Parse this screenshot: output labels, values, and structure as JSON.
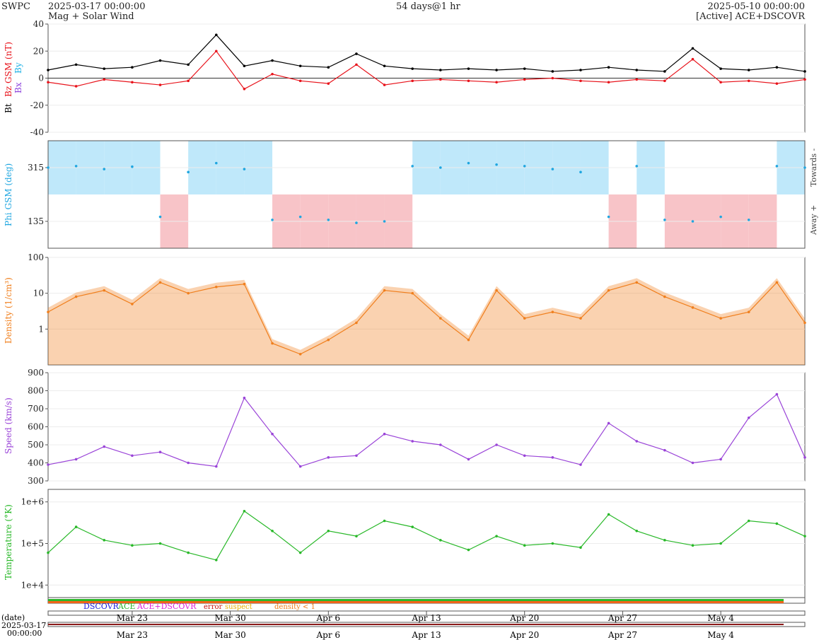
{
  "header": {
    "source": "SWPC",
    "start": "2025-03-17 00:00:00",
    "subtitle": "Mag + Solar Wind",
    "duration": "54 days@1 hr",
    "end": "2025-05-10 00:00:00",
    "active": "[Active] ACE+DSCOVR"
  },
  "colors": {
    "bt": "#000000",
    "bz": "#e8141c",
    "by": "#1fb2e6",
    "bx": "#8e44dd",
    "phi": "#1fa6e0",
    "density": "#f07f1d",
    "speed": "#9a44d8",
    "temperature": "#28b828"
  },
  "chart_data": [
    {
      "type": "line",
      "panel": "magnetic field",
      "ylabel_parts": [
        "Bt",
        "Bz GSM (nT)",
        "Bx",
        "By"
      ],
      "ylim": [
        -40,
        40
      ],
      "yticks": [
        -40,
        -20,
        0,
        20,
        40
      ],
      "series": [
        {
          "name": "Bt",
          "x": [
            0,
            2,
            4,
            6,
            8,
            10,
            12,
            14,
            16,
            18,
            20,
            22,
            24,
            26,
            28,
            30,
            32,
            34,
            36,
            38,
            40,
            42,
            44,
            46,
            48,
            50,
            52,
            54
          ],
          "values": [
            6,
            10,
            7,
            8,
            13,
            10,
            32,
            9,
            13,
            9,
            8,
            18,
            9,
            7,
            6,
            7,
            6,
            7,
            5,
            6,
            8,
            6,
            5,
            22,
            7,
            6,
            8,
            5
          ]
        },
        {
          "name": "Bz GSM",
          "x": [
            0,
            2,
            4,
            6,
            8,
            10,
            12,
            14,
            16,
            18,
            20,
            22,
            24,
            26,
            28,
            30,
            32,
            34,
            36,
            38,
            40,
            42,
            44,
            46,
            48,
            50,
            52,
            54
          ],
          "values": [
            -3,
            -6,
            -1,
            -3,
            -5,
            -2,
            20,
            -8,
            3,
            -2,
            -4,
            10,
            -5,
            -2,
            -1,
            -2,
            -3,
            -1,
            0,
            -2,
            -3,
            -1,
            -2,
            14,
            -3,
            -2,
            -4,
            -1
          ]
        }
      ]
    },
    {
      "type": "scatter",
      "panel": "phi",
      "ylabel": "Phi GSM (deg)",
      "yticks": [
        135,
        315
      ],
      "ylim": [
        45,
        405
      ],
      "side_labels": [
        "Towards -",
        "Away +"
      ],
      "series": [
        {
          "name": "Phi GSM",
          "x": [
            0,
            2,
            4,
            6,
            8,
            10,
            12,
            14,
            16,
            18,
            20,
            22,
            24,
            26,
            28,
            30,
            32,
            34,
            36,
            38,
            40,
            42,
            44,
            46,
            48,
            50,
            52,
            54
          ],
          "values": [
            315,
            320,
            310,
            318,
            150,
            300,
            330,
            310,
            140,
            150,
            140,
            130,
            135,
            320,
            315,
            330,
            325,
            320,
            310,
            300,
            150,
            320,
            140,
            135,
            150,
            140,
            320,
            315
          ]
        }
      ]
    },
    {
      "type": "line",
      "panel": "density",
      "ylabel": "Density (1/cm³)",
      "scale": "log",
      "ylim": [
        0.1,
        100
      ],
      "yticks": [
        1,
        10,
        100
      ],
      "series": [
        {
          "name": "Density",
          "x": [
            0,
            2,
            4,
            6,
            8,
            10,
            12,
            14,
            16,
            18,
            20,
            22,
            24,
            26,
            28,
            30,
            32,
            34,
            36,
            38,
            40,
            42,
            44,
            46,
            48,
            50,
            52,
            54
          ],
          "values": [
            3,
            8,
            12,
            5,
            20,
            10,
            15,
            18,
            0.4,
            0.2,
            0.5,
            1.5,
            12,
            10,
            2,
            0.5,
            12,
            2,
            3,
            2,
            12,
            20,
            8,
            4,
            2,
            3,
            20,
            1.5
          ]
        }
      ]
    },
    {
      "type": "line",
      "panel": "speed",
      "ylabel": "Speed (km/s)",
      "ylim": [
        300,
        900
      ],
      "yticks": [
        300,
        400,
        500,
        600,
        700,
        800,
        900
      ],
      "series": [
        {
          "name": "Speed",
          "x": [
            0,
            2,
            4,
            6,
            8,
            10,
            12,
            14,
            16,
            18,
            20,
            22,
            24,
            26,
            28,
            30,
            32,
            34,
            36,
            38,
            40,
            42,
            44,
            46,
            48,
            50,
            52,
            54
          ],
          "values": [
            390,
            420,
            490,
            440,
            460,
            400,
            380,
            760,
            560,
            380,
            430,
            440,
            560,
            520,
            500,
            420,
            500,
            440,
            430,
            390,
            620,
            520,
            470,
            400,
            420,
            650,
            780,
            430
          ]
        }
      ]
    },
    {
      "type": "line",
      "panel": "temperature",
      "ylabel": "Temperature (°K)",
      "scale": "log",
      "ylim": [
        5000,
        2000000
      ],
      "yticks": [
        "1e+4",
        "1e+5",
        "1e+6"
      ],
      "series": [
        {
          "name": "Temperature",
          "x": [
            0,
            2,
            4,
            6,
            8,
            10,
            12,
            14,
            16,
            18,
            20,
            22,
            24,
            26,
            28,
            30,
            32,
            34,
            36,
            38,
            40,
            42,
            44,
            46,
            48,
            50,
            52,
            54
          ],
          "values": [
            60000,
            250000,
            120000,
            90000,
            100000,
            60000,
            40000,
            600000,
            200000,
            60000,
            200000,
            150000,
            350000,
            250000,
            120000,
            70000,
            150000,
            90000,
            100000,
            80000,
            500000,
            200000,
            120000,
            90000,
            100000,
            350000,
            300000,
            150000
          ]
        }
      ]
    }
  ],
  "status_legend": {
    "dscovr": "DSCOVR",
    "ace": "ACE",
    "ace_dscovr": "ACE+DSCOVR",
    "error": "error",
    "suspect": "suspect",
    "density_lt_1": "density < 1"
  },
  "xaxis": {
    "date_label": "(date)",
    "start_date": "2025-03-17",
    "start_time": "00:00:00",
    "ticks": [
      {
        "label": "Mar 23",
        "day": 6
      },
      {
        "label": "Mar 30",
        "day": 13
      },
      {
        "label": "Apr 6",
        "day": 20
      },
      {
        "label": "Apr 13",
        "day": 27
      },
      {
        "label": "Apr 20",
        "day": 34
      },
      {
        "label": "Apr 27",
        "day": 41
      },
      {
        "label": "May 4",
        "day": 48
      }
    ]
  }
}
